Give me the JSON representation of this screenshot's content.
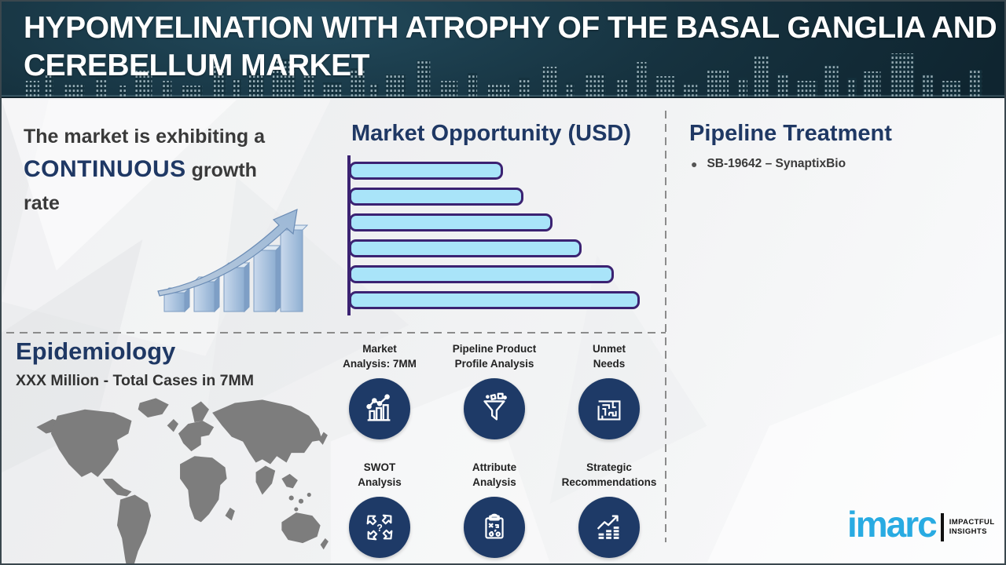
{
  "header": {
    "title_lines": [
      "HYPOMYELINATION WITH ATROPHY OF THE BASAL GANGLIA AND",
      "CEREBELLUM MARKET"
    ]
  },
  "growth_note": {
    "prefix": "The market is exhibiting a ",
    "highlight": "CONTINUOUS",
    "suffix": " growth rate"
  },
  "market_opportunity": {
    "title": "Market Opportunity (USD)"
  },
  "chart_data": {
    "type": "bar",
    "orientation": "horizontal",
    "title": "Market Opportunity (USD)",
    "categories": [
      "",
      "",
      "",
      "",
      "",
      ""
    ],
    "values": [
      53,
      60,
      70,
      80,
      91,
      100
    ],
    "note": "six unlabeled bars growing top to bottom; values estimated as % of longest bar",
    "xlabel": "",
    "ylabel": "",
    "grid": false,
    "legend": false
  },
  "pipeline": {
    "title": "Pipeline Treatment",
    "items": [
      "SB-19642 – SynaptixBio"
    ]
  },
  "epidemiology": {
    "title": "Epidemiology",
    "subtitle": "XXX Million - Total Cases in 7MM"
  },
  "features": [
    {
      "icon": "bar-chart-trend-icon",
      "label_lines": [
        "Market",
        "Analysis: 7MM"
      ]
    },
    {
      "icon": "funnel-icon",
      "label_lines": [
        "Pipeline Product",
        "Profile Analysis"
      ]
    },
    {
      "icon": "maze-icon",
      "label_lines": [
        "Unmet",
        "Needs"
      ]
    },
    {
      "icon": "swot-arrows-icon",
      "label_lines": [
        "SWOT",
        "Analysis"
      ]
    },
    {
      "icon": "clipboard-strategy-icon",
      "label_lines": [
        "Attribute",
        "Analysis"
      ]
    },
    {
      "icon": "growth-arrow-bars-icon",
      "label_lines": [
        "Strategic",
        "Recommendations"
      ]
    }
  ],
  "logo": {
    "brand": "imarc",
    "tagline_lines": [
      "IMPACTFUL",
      "INSIGHTS"
    ]
  },
  "colors": {
    "header_background": "#16323f",
    "heading_navy": "#1f3864",
    "bar_fill": "#a9e4f9",
    "bar_border": "#3b2272",
    "icon_circle_navy": "#1e3a67",
    "brand_blue": "#29abe2",
    "map_gray": "#7d7d7d",
    "dashed_line_gray": "#8b8b8b",
    "body_text": "#3a3a3a"
  }
}
